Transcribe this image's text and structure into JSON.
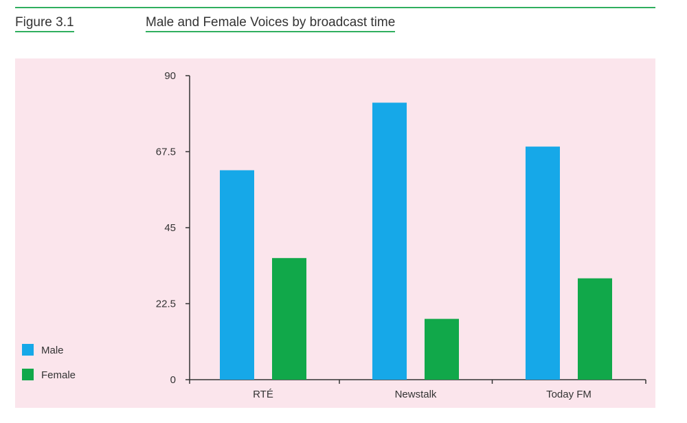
{
  "figure_label": "Figure 3.1",
  "title": "Male and Female Voices by broadcast time",
  "colors": {
    "accent_rule": "#2fae5e",
    "panel_background": "#fbe5ec",
    "male": "#16a8e8",
    "female": "#11a84a",
    "axis": "#333333"
  },
  "chart_data": {
    "type": "bar",
    "categories": [
      "RTÉ",
      "Newstalk",
      "Today FM"
    ],
    "series": [
      {
        "name": "Male",
        "values": [
          62,
          82,
          69
        ]
      },
      {
        "name": "Female",
        "values": [
          36,
          18,
          30
        ]
      }
    ],
    "ylim": [
      0,
      90
    ],
    "yticks": [
      "0",
      "22.5",
      "45",
      "67.5",
      "90"
    ],
    "ytick_values": [
      0,
      22.5,
      45,
      67.5,
      90
    ],
    "grid": false,
    "legend_position": "bottom-left",
    "xlabel": "",
    "ylabel": ""
  }
}
